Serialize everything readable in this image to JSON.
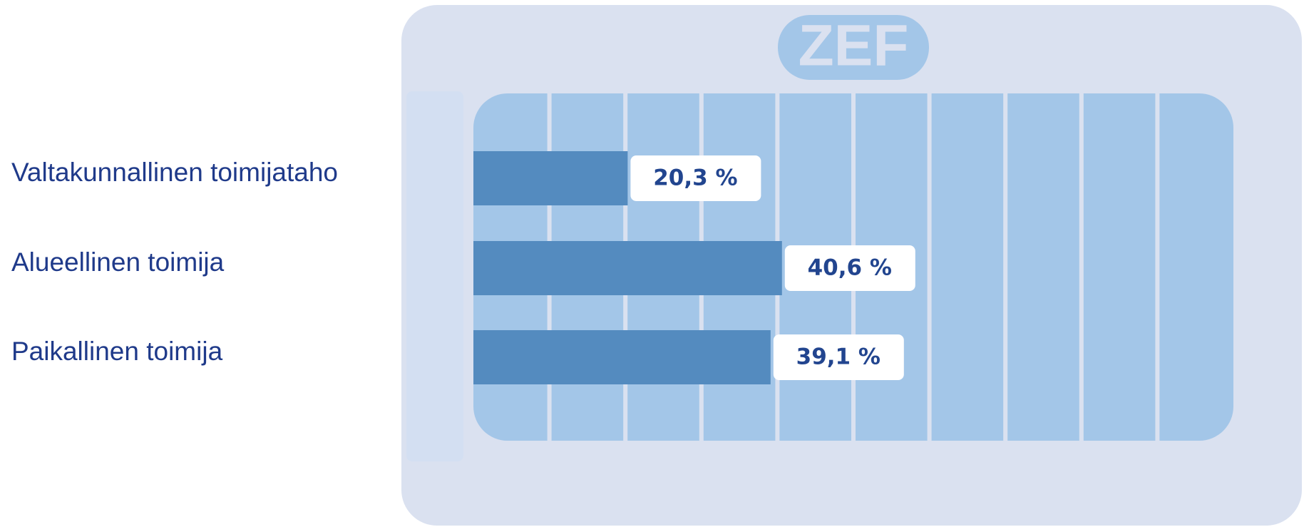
{
  "chart_data": {
    "type": "barh",
    "logo": "ZEF",
    "categories": [
      "Valtakunnallinen toimijataho",
      "Alueellinen toimija",
      "Paikallinen toimija"
    ],
    "values": [
      20.3,
      40.6,
      39.1
    ],
    "value_labels": [
      "20,3 %",
      "40,6 %",
      "39,1 %"
    ],
    "color": "#548bbf",
    "xlim": [
      0,
      100
    ],
    "xticks": [
      0,
      10,
      20,
      30,
      40,
      50,
      60,
      70,
      80,
      90,
      100
    ],
    "grid": true
  }
}
